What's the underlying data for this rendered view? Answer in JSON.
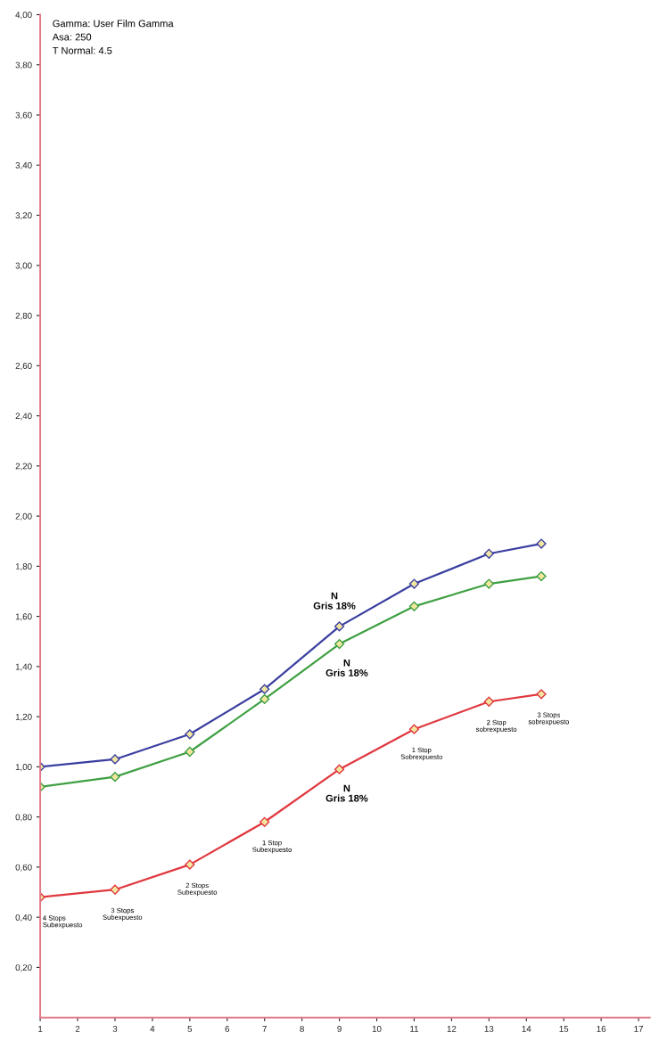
{
  "chart_data": {
    "type": "line",
    "x": [
      1,
      3,
      5,
      7,
      9,
      11,
      13,
      14.4
    ],
    "series": [
      {
        "color": "#3a3fa0",
        "values": [
          1.0,
          1.03,
          1.13,
          1.31,
          1.56,
          1.73,
          1.85,
          1.89
        ]
      },
      {
        "color": "#3fa043",
        "values": [
          0.92,
          0.96,
          1.06,
          1.27,
          1.49,
          1.64,
          1.73,
          1.76
        ]
      },
      {
        "color": "#e0383f",
        "values": [
          0.48,
          0.51,
          0.61,
          0.78,
          0.99,
          1.15,
          1.26,
          1.29
        ]
      }
    ],
    "marker": "diamond",
    "xlim": [
      1,
      17.3
    ],
    "xticks": [
      1,
      2,
      3,
      4,
      5,
      6,
      7,
      8,
      9,
      10,
      11,
      12,
      13,
      14,
      15,
      16,
      17
    ],
    "ylim": [
      0,
      4.0
    ],
    "yticks": [
      {
        "value": 0.2,
        "label": "0,20"
      },
      {
        "value": 0.4,
        "label": "0,40"
      },
      {
        "value": 0.6,
        "label": "0,60"
      },
      {
        "value": 0.8,
        "label": "0,80"
      },
      {
        "value": 1.0,
        "label": "1,00"
      },
      {
        "value": 1.2,
        "label": "1,20"
      },
      {
        "value": 1.4,
        "label": "1,40"
      },
      {
        "value": 1.6,
        "label": "1,60"
      },
      {
        "value": 1.8,
        "label": "1,80"
      },
      {
        "value": 2.0,
        "label": "2,00"
      },
      {
        "value": 2.2,
        "label": "2,20"
      },
      {
        "value": 2.4,
        "label": "2,40"
      },
      {
        "value": 2.6,
        "label": "2,60"
      },
      {
        "value": 2.8,
        "label": "2,80"
      },
      {
        "value": 3.0,
        "label": "3,00"
      },
      {
        "value": 3.2,
        "label": "3,20"
      },
      {
        "value": 3.4,
        "label": "3,40"
      },
      {
        "value": 3.6,
        "label": "3,60"
      },
      {
        "value": 3.8,
        "label": "3,80"
      },
      {
        "value": 4.0,
        "label": "4,00"
      }
    ],
    "grid": false,
    "legend": false,
    "annotations": [
      "Gamma: User Film Gamma",
      "Asa: 250",
      "T Normal: 4.5",
      {
        "text": "N\nGris 18%",
        "x": 9,
        "y": 1.56
      },
      {
        "text": "N\nGris 18%",
        "x": 9,
        "y": 1.49
      },
      {
        "text": "N\nGris 18%",
        "x": 9,
        "y": 0.99
      },
      {
        "text": "4 Stops\nSubexpuesto",
        "x": 1,
        "y": 0.48
      },
      {
        "text": "3 Stops\nSubexpuesto",
        "x": 3,
        "y": 0.51
      },
      {
        "text": "2 Stops\nSubexpuesto",
        "x": 5,
        "y": 0.61
      },
      {
        "text": "1 Stop\nSubexpuesto",
        "x": 7,
        "y": 0.78
      },
      {
        "text": "1 Stop\nSobrexpuesto",
        "x": 11,
        "y": 1.15
      },
      {
        "text": "2 Stop\nsobrexpuesto",
        "x": 13,
        "y": 1.26
      },
      {
        "text": "3 Stops\nsobrexpuesto",
        "x": 14.4,
        "y": 1.29
      }
    ]
  }
}
